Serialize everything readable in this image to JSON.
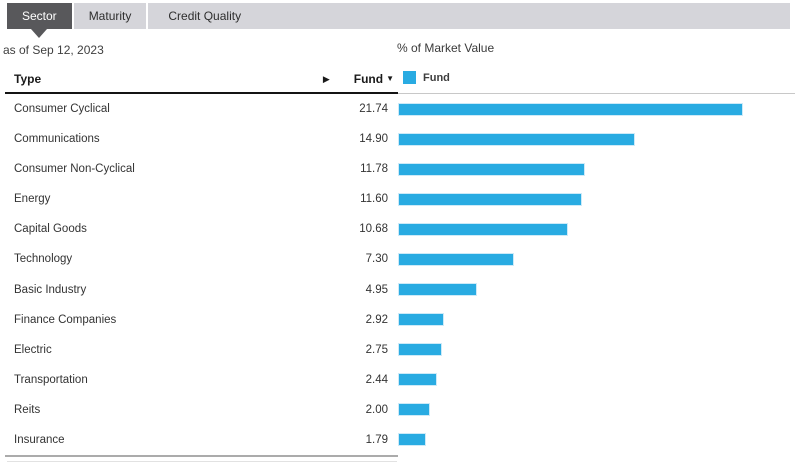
{
  "tabs": {
    "items": [
      {
        "label": "Sector",
        "active": true
      },
      {
        "label": "Maturity",
        "active": false
      },
      {
        "label": "Credit Quality",
        "active": false
      }
    ]
  },
  "as_of_label": "as of Sep 12, 2023",
  "table": {
    "type_header": "Type",
    "expand_arrow": "▶",
    "fund_header": "Fund",
    "sort_indicator": "▼"
  },
  "legend": {
    "label": "Fund",
    "color": "#29abe2"
  },
  "chart_data": {
    "type": "bar",
    "orientation": "horizontal",
    "title": "% of Market Value",
    "as_of": "Sep 12, 2023",
    "categories": [
      "Consumer Cyclical",
      "Communications",
      "Consumer Non-Cyclical",
      "Energy",
      "Capital Goods",
      "Technology",
      "Basic Industry",
      "Finance Companies",
      "Electric",
      "Transportation",
      "Reits",
      "Insurance"
    ],
    "series": [
      {
        "name": "Fund",
        "values": [
          21.74,
          14.9,
          11.78,
          11.6,
          10.68,
          7.3,
          4.95,
          2.92,
          2.75,
          2.44,
          2.0,
          1.79
        ]
      }
    ],
    "xlim": [
      0,
      25
    ],
    "grid": false,
    "legend_position": "top-left",
    "value_format": "2-decimals"
  },
  "colors": {
    "bar": "#29abe2",
    "active_tab_bg": "#58585b",
    "tab_strip_bg": "#d5d5da",
    "header_rule": "#141414"
  }
}
